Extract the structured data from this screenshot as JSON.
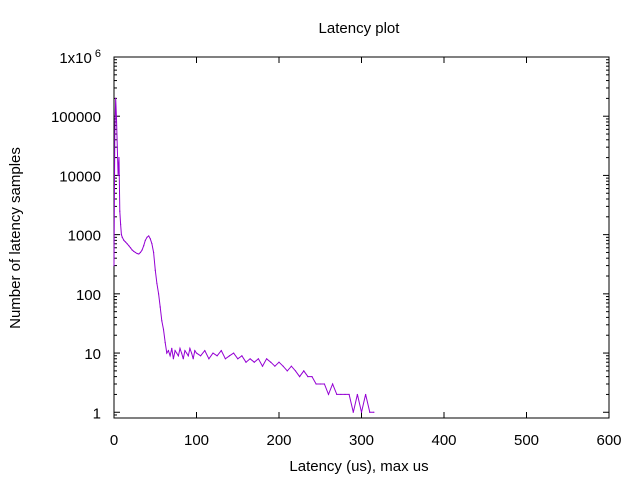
{
  "chart_data": {
    "type": "line",
    "title": "Latency plot",
    "xlabel": "Latency (us), max  us",
    "ylabel": "Number of latency samples",
    "xlim": [
      0,
      600
    ],
    "x_ticks": [
      "0",
      "100",
      "200",
      "300",
      "400",
      "500",
      "600"
    ],
    "y_scale": "log",
    "ylim": [
      0.8,
      1000000
    ],
    "y_ticks": [
      {
        "value": 1,
        "label": "1"
      },
      {
        "value": 10,
        "label": "10"
      },
      {
        "value": 100,
        "label": "100"
      },
      {
        "value": 1000,
        "label": "1000"
      },
      {
        "value": 10000,
        "label": "10000"
      },
      {
        "value": 100000,
        "label": "100000"
      },
      {
        "value": 1000000,
        "label": "1x10",
        "sup": "6"
      }
    ],
    "grid": false,
    "series": [
      {
        "color": "#9400d3",
        "points": [
          [
            0,
            300
          ],
          [
            1,
            50000
          ],
          [
            2,
            200000
          ],
          [
            3,
            90000
          ],
          [
            4,
            30000
          ],
          [
            5,
            10000
          ],
          [
            6,
            20000
          ],
          [
            7,
            2500
          ],
          [
            8,
            1500
          ],
          [
            9,
            1000
          ],
          [
            10,
            900
          ],
          [
            12,
            800
          ],
          [
            14,
            750
          ],
          [
            16,
            700
          ],
          [
            18,
            650
          ],
          [
            20,
            600
          ],
          [
            22,
            550
          ],
          [
            24,
            520
          ],
          [
            26,
            500
          ],
          [
            28,
            480
          ],
          [
            30,
            470
          ],
          [
            32,
            500
          ],
          [
            34,
            550
          ],
          [
            36,
            650
          ],
          [
            38,
            800
          ],
          [
            40,
            900
          ],
          [
            42,
            950
          ],
          [
            44,
            850
          ],
          [
            46,
            700
          ],
          [
            48,
            500
          ],
          [
            50,
            250
          ],
          [
            52,
            150
          ],
          [
            54,
            100
          ],
          [
            56,
            60
          ],
          [
            58,
            35
          ],
          [
            60,
            25
          ],
          [
            62,
            15
          ],
          [
            64,
            10
          ],
          [
            66,
            11
          ],
          [
            68,
            9
          ],
          [
            70,
            12
          ],
          [
            72,
            8
          ],
          [
            74,
            11
          ],
          [
            76,
            10
          ],
          [
            78,
            9
          ],
          [
            80,
            12
          ],
          [
            82,
            10
          ],
          [
            84,
            8
          ],
          [
            86,
            11
          ],
          [
            88,
            10
          ],
          [
            90,
            9
          ],
          [
            92,
            12
          ],
          [
            94,
            10
          ],
          [
            96,
            8
          ],
          [
            98,
            11
          ],
          [
            100,
            10
          ],
          [
            105,
            9
          ],
          [
            110,
            11
          ],
          [
            115,
            8
          ],
          [
            120,
            10
          ],
          [
            125,
            9
          ],
          [
            130,
            11
          ],
          [
            135,
            8
          ],
          [
            140,
            9
          ],
          [
            145,
            10
          ],
          [
            150,
            8
          ],
          [
            155,
            9
          ],
          [
            160,
            7
          ],
          [
            165,
            8
          ],
          [
            170,
            7
          ],
          [
            175,
            8
          ],
          [
            180,
            6
          ],
          [
            185,
            8
          ],
          [
            190,
            7
          ],
          [
            195,
            6
          ],
          [
            200,
            7
          ],
          [
            205,
            6
          ],
          [
            210,
            5
          ],
          [
            215,
            6
          ],
          [
            220,
            5
          ],
          [
            225,
            4
          ],
          [
            230,
            5
          ],
          [
            235,
            4
          ],
          [
            240,
            4
          ],
          [
            245,
            3
          ],
          [
            250,
            3
          ],
          [
            255,
            3
          ],
          [
            260,
            2
          ],
          [
            265,
            3
          ],
          [
            270,
            2
          ],
          [
            275,
            2
          ],
          [
            280,
            2
          ],
          [
            285,
            2
          ],
          [
            290,
            1
          ],
          [
            295,
            2
          ],
          [
            300,
            1
          ],
          [
            305,
            2
          ],
          [
            310,
            1
          ],
          [
            315,
            1
          ]
        ]
      }
    ]
  }
}
